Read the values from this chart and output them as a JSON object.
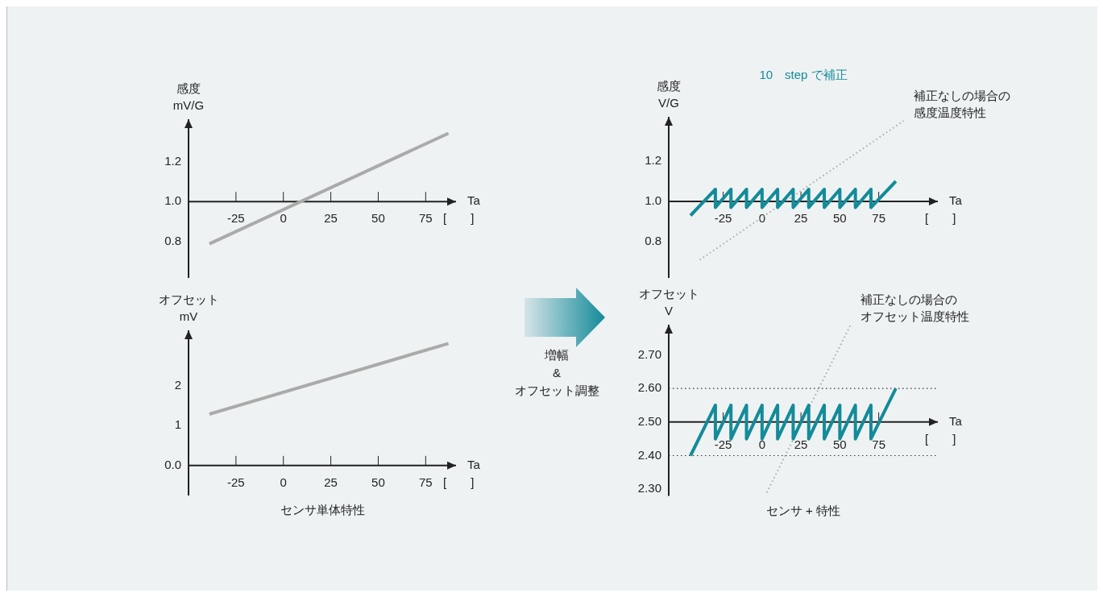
{
  "chart_data": [
    {
      "type": "line",
      "ylabel": "感度\nmV/G",
      "xlabel": "Ta\n[　　]",
      "xlim": [
        -50,
        91
      ],
      "ylim": [
        0.62,
        1.41
      ],
      "xticks": [
        -25,
        0,
        25,
        50,
        75
      ],
      "yticks": [
        0.8,
        {
          "value": 1,
          "label": "1.0"
        },
        1.2
      ],
      "marker": "none",
      "series": [
        {
          "color": "#aaaaaa",
          "x": [
            -39,
            87
          ],
          "values": [
            0.79,
            1.34
          ]
        }
      ]
    },
    {
      "type": "line",
      "ylabel": "オフセット\nmV",
      "xlabel": "Ta\n[　　]",
      "xlim": [
        -50,
        91
      ],
      "ylim": [
        -0.75,
        3.39
      ],
      "xticks": [
        -25,
        0,
        25,
        50,
        75
      ],
      "yticks": [
        {
          "value": 0,
          "label": "0.0"
        },
        1,
        2
      ],
      "marker": "none",
      "annotations": [
        "センサ単体特性"
      ],
      "series": [
        {
          "color": "#aaaaaa",
          "x": [
            -39,
            87
          ],
          "values": [
            1.29,
            3.06
          ]
        }
      ]
    },
    {
      "type": "other",
      "annotations": [
        "増幅",
        "&",
        "オフセット調整"
      ]
    },
    {
      "type": "line",
      "subtitle": "10　step で補正",
      "ylabel": "感度\nV/G",
      "xlabel": "Ta\n[　　]",
      "xlim": [
        -60,
        113
      ],
      "ylim": [
        0.62,
        1.42
      ],
      "xticks": [
        -25,
        0,
        25,
        50,
        75
      ],
      "yticks": [
        0.8,
        {
          "value": 1,
          "label": "1.0"
        },
        1.2
      ],
      "marker": "none",
      "series": [
        {
          "color": "#138b99",
          "x": [
            -46,
            -30,
            -30,
            -20,
            -20,
            -10,
            -10,
            0,
            0,
            10,
            10,
            20,
            20,
            30,
            30,
            40,
            40,
            50,
            50,
            60,
            60,
            70,
            70,
            86
          ],
          "values": [
            0.93,
            1.06,
            0.97,
            1.06,
            0.97,
            1.06,
            0.97,
            1.06,
            0.97,
            1.06,
            0.97,
            1.06,
            0.97,
            1.06,
            0.97,
            1.06,
            0.97,
            1.06,
            0.97,
            1.06,
            0.97,
            1.06,
            0.97,
            1.1
          ]
        },
        {
          "name": "補正なしの場合の感度温度特性",
          "color": "#aaaaaa",
          "line_style": "dotted",
          "x": [
            -40,
            91
          ],
          "values": [
            0.71,
            1.4
          ]
        }
      ]
    },
    {
      "type": "line",
      "ylabel": "オフセット\nV",
      "xlabel": "Ta\n[　　]",
      "xlim": [
        -60,
        113
      ],
      "ylim": [
        2.28,
        2.79
      ],
      "xticks": [
        -25,
        0,
        25,
        50,
        75
      ],
      "yticks": [
        {
          "value": 2.3,
          "label": "2.30"
        },
        {
          "value": 2.4,
          "label": "2.40"
        },
        {
          "value": 2.5,
          "label": "2.50"
        },
        {
          "value": 2.6,
          "label": "2.60"
        },
        {
          "value": 2.7,
          "label": "2.70"
        }
      ],
      "marker": "none",
      "annotations": [
        "センサ + 特性"
      ],
      "ref_lines": [
        {
          "axis": "y",
          "value": 2.6,
          "color": "#333333",
          "line_style": "dotted"
        },
        {
          "axis": "y",
          "value": 2.4,
          "color": "#333333",
          "line_style": "dotted"
        }
      ],
      "series": [
        {
          "color": "#138b99",
          "x": [
            -46,
            -30,
            -30,
            -20,
            -20,
            -10,
            -10,
            0,
            0,
            10,
            10,
            20,
            20,
            30,
            30,
            40,
            40,
            50,
            50,
            60,
            60,
            70,
            70,
            86
          ],
          "values": [
            2.4,
            2.55,
            2.45,
            2.55,
            2.45,
            2.55,
            2.45,
            2.55,
            2.45,
            2.55,
            2.45,
            2.55,
            2.45,
            2.55,
            2.45,
            2.55,
            2.45,
            2.55,
            2.45,
            2.55,
            2.45,
            2.55,
            2.45,
            2.6
          ]
        },
        {
          "name": "補正なしの場合のオフセット温度特性",
          "color": "#aaaaaa",
          "line_style": "dotted",
          "x": [
            3,
            57
          ],
          "values": [
            2.29,
            2.79
          ]
        }
      ]
    }
  ]
}
